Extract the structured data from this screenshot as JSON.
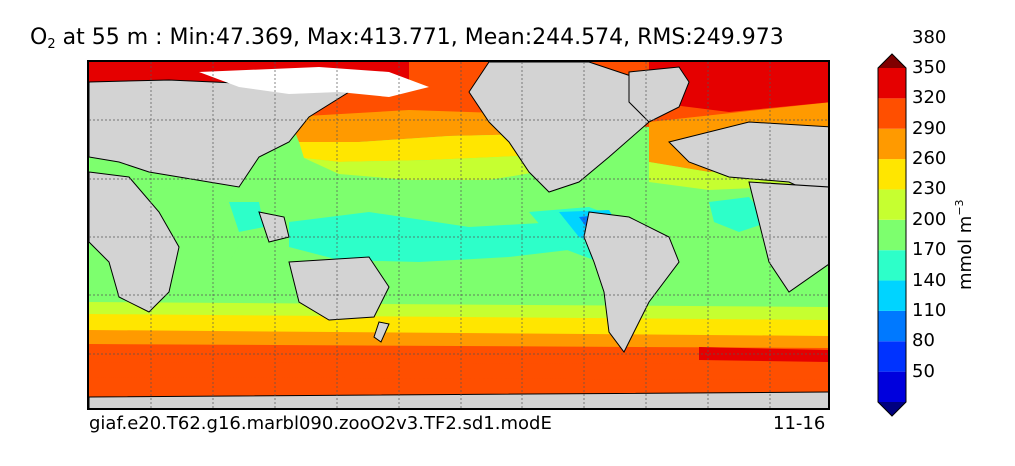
{
  "title": {
    "variable": "O",
    "subscript": "2",
    "rest": " at 55 m : Min:47.369, Max:413.771, Mean:244.574, RMS:249.973"
  },
  "caption_left": "giaf.e20.T62.g16.marbl090.zooO2v3.TF2.sd1.modE",
  "caption_right": "11-16",
  "colorbar": {
    "label_main": "mmol m",
    "label_sup": "−3",
    "extend": "both",
    "tick_labels": [
      "50",
      "80",
      "110",
      "140",
      "170",
      "200",
      "230",
      "260",
      "290",
      "320",
      "350",
      "380"
    ],
    "bins": [
      {
        "color": "#00007f"
      },
      {
        "color": "#0000dd"
      },
      {
        "color": "#0033ff"
      },
      {
        "color": "#0079ff"
      },
      {
        "color": "#00d4ff"
      },
      {
        "color": "#2dffc9"
      },
      {
        "color": "#7dff6e"
      },
      {
        "color": "#c6ff30"
      },
      {
        "color": "#ffe600"
      },
      {
        "color": "#ff9a00"
      },
      {
        "color": "#ff4f00"
      },
      {
        "color": "#e50000"
      },
      {
        "color": "#7f0000"
      }
    ]
  },
  "colors": {
    "land": "#d3d3d3",
    "sea_ice": "#ffffff",
    "grid": "#555555"
  }
}
